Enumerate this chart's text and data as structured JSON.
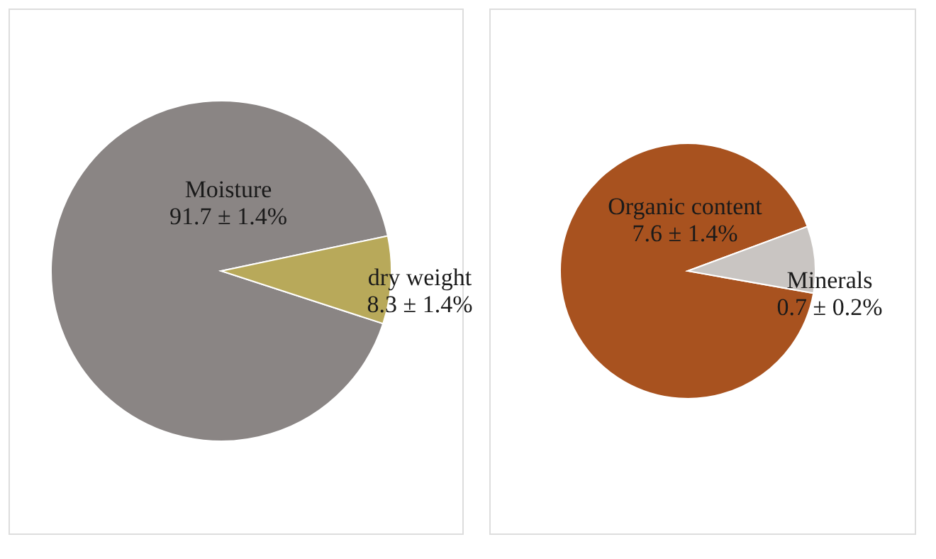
{
  "chart_data": [
    {
      "type": "pie",
      "categories": [
        "Moisture",
        "dry weight"
      ],
      "values": [
        91.7,
        8.3
      ],
      "colors": [
        "#8a8584",
        "#b8a95a"
      ],
      "value_labels": [
        "91.7 ± 1.4%",
        "8.3 ± 1.4%"
      ]
    },
    {
      "type": "pie",
      "categories": [
        "Organic content",
        "Minerals"
      ],
      "values": [
        7.6,
        0.7
      ],
      "colors": [
        "#a8521f",
        "#c9c5c2"
      ],
      "value_labels": [
        "7.6 ± 1.4%",
        "0.7 ± 0.2%"
      ]
    }
  ]
}
